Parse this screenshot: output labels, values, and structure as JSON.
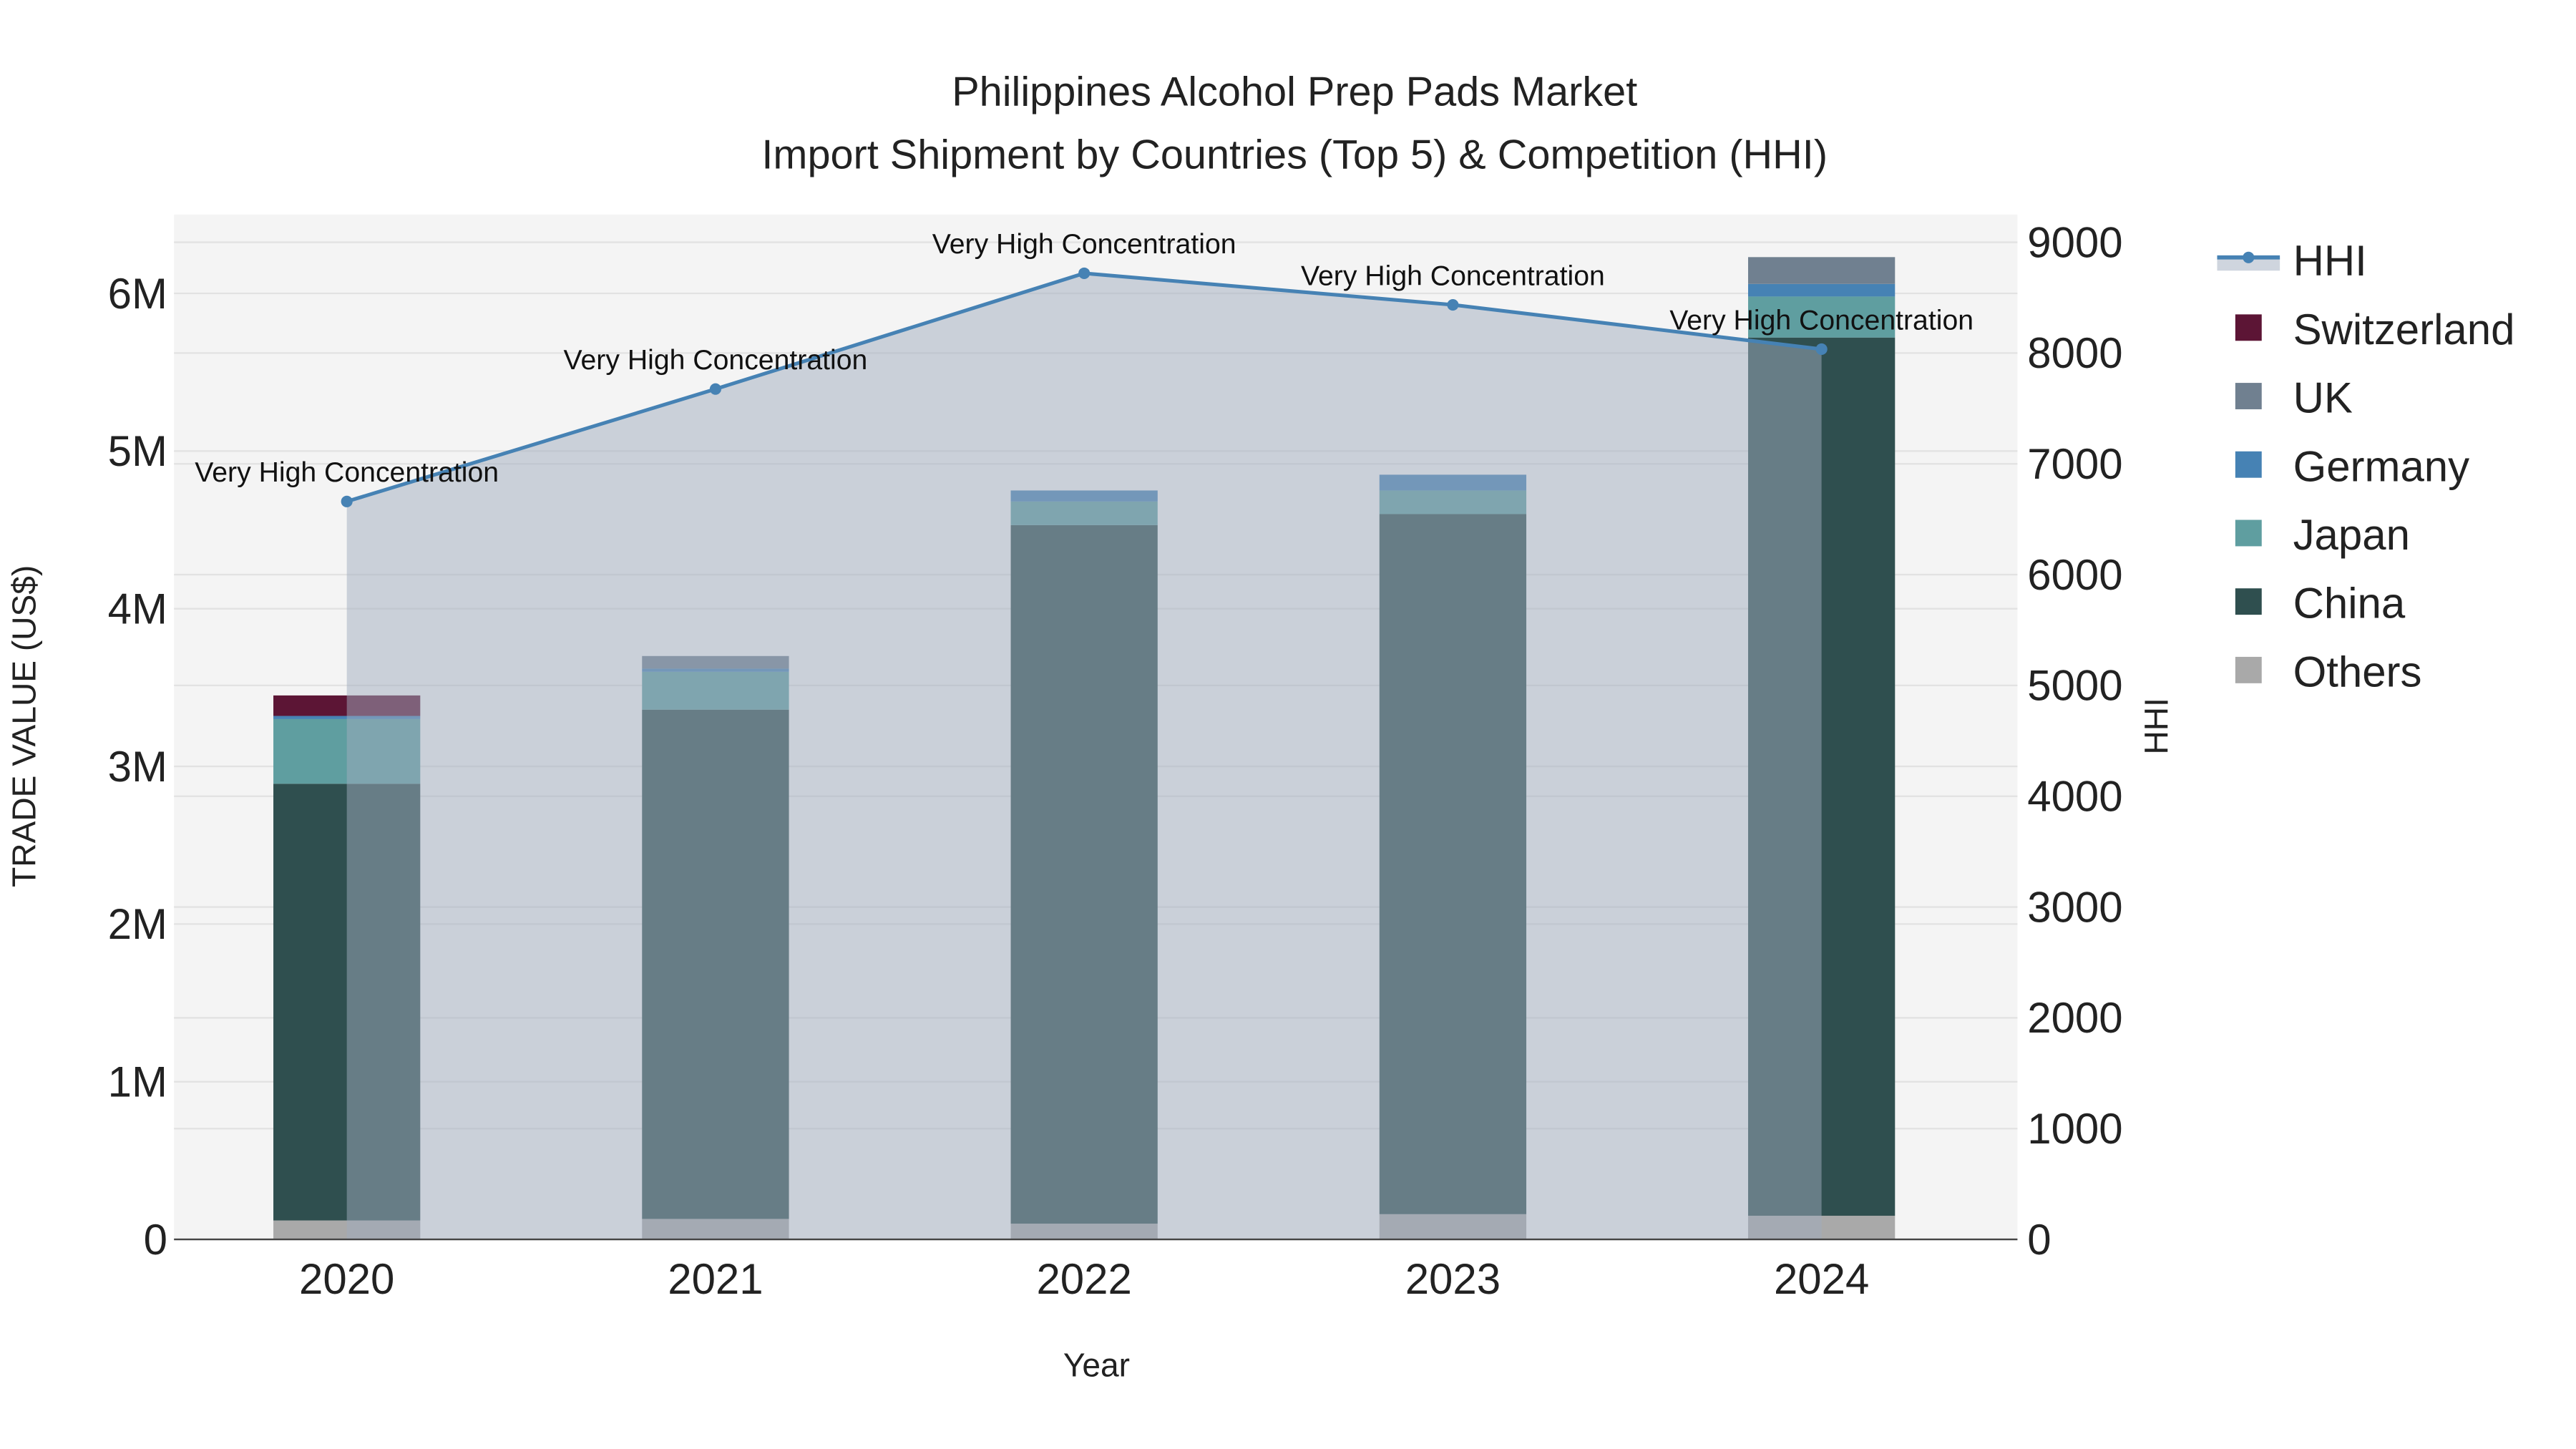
{
  "chart_data": {
    "type": "bar",
    "title_line1": "Philippines Alcohol Prep Pads Market",
    "title_line2": "Import Shipment by Countries (Top 5) & Competition (HHI)",
    "xlabel": "Year",
    "ylabel": "TRADE VALUE (US$)",
    "y2label": "HHI",
    "categories": [
      "2020",
      "2021",
      "2022",
      "2023",
      "2024"
    ],
    "ylim": [
      0,
      6500000
    ],
    "y2lim": [
      0,
      9250
    ],
    "yticks": [
      {
        "v": 0,
        "label": "0"
      },
      {
        "v": 1000000,
        "label": "1M"
      },
      {
        "v": 2000000,
        "label": "2M"
      },
      {
        "v": 3000000,
        "label": "3M"
      },
      {
        "v": 4000000,
        "label": "4M"
      },
      {
        "v": 5000000,
        "label": "5M"
      },
      {
        "v": 6000000,
        "label": "6M"
      }
    ],
    "y2ticks": [
      0,
      1000,
      2000,
      3000,
      4000,
      5000,
      6000,
      7000,
      8000,
      9000
    ],
    "series": [
      {
        "name": "Others",
        "color": "#a9a9a9",
        "values": [
          120000,
          130000,
          100000,
          160000,
          150000
        ]
      },
      {
        "name": "China",
        "color": "#2f4f4f",
        "values": [
          2770000,
          3230000,
          4430000,
          4440000,
          5570000
        ]
      },
      {
        "name": "Japan",
        "color": "#5f9ea0",
        "values": [
          410000,
          240000,
          150000,
          150000,
          260000
        ]
      },
      {
        "name": "Germany",
        "color": "#4682b4",
        "values": [
          20000,
          20000,
          70000,
          100000,
          80000
        ]
      },
      {
        "name": "UK",
        "color": "#708090",
        "values": [
          0,
          80000,
          0,
          0,
          170000
        ]
      },
      {
        "name": "Switzerland",
        "color": "#5c1535",
        "values": [
          130000,
          0,
          0,
          0,
          0
        ]
      }
    ],
    "hhi": {
      "name": "HHI",
      "color": "#4682b4",
      "values": [
        6660,
        7675,
        8720,
        8435,
        8035
      ],
      "annotations": [
        "Very High Concentration",
        "Very High Concentration",
        "Very High Concentration",
        "Very High Concentration",
        "Very High Concentration"
      ]
    },
    "legend_position": "right",
    "legend_order": [
      "HHI",
      "Switzerland",
      "UK",
      "Germany",
      "Japan",
      "China",
      "Others"
    ],
    "grid": true
  }
}
